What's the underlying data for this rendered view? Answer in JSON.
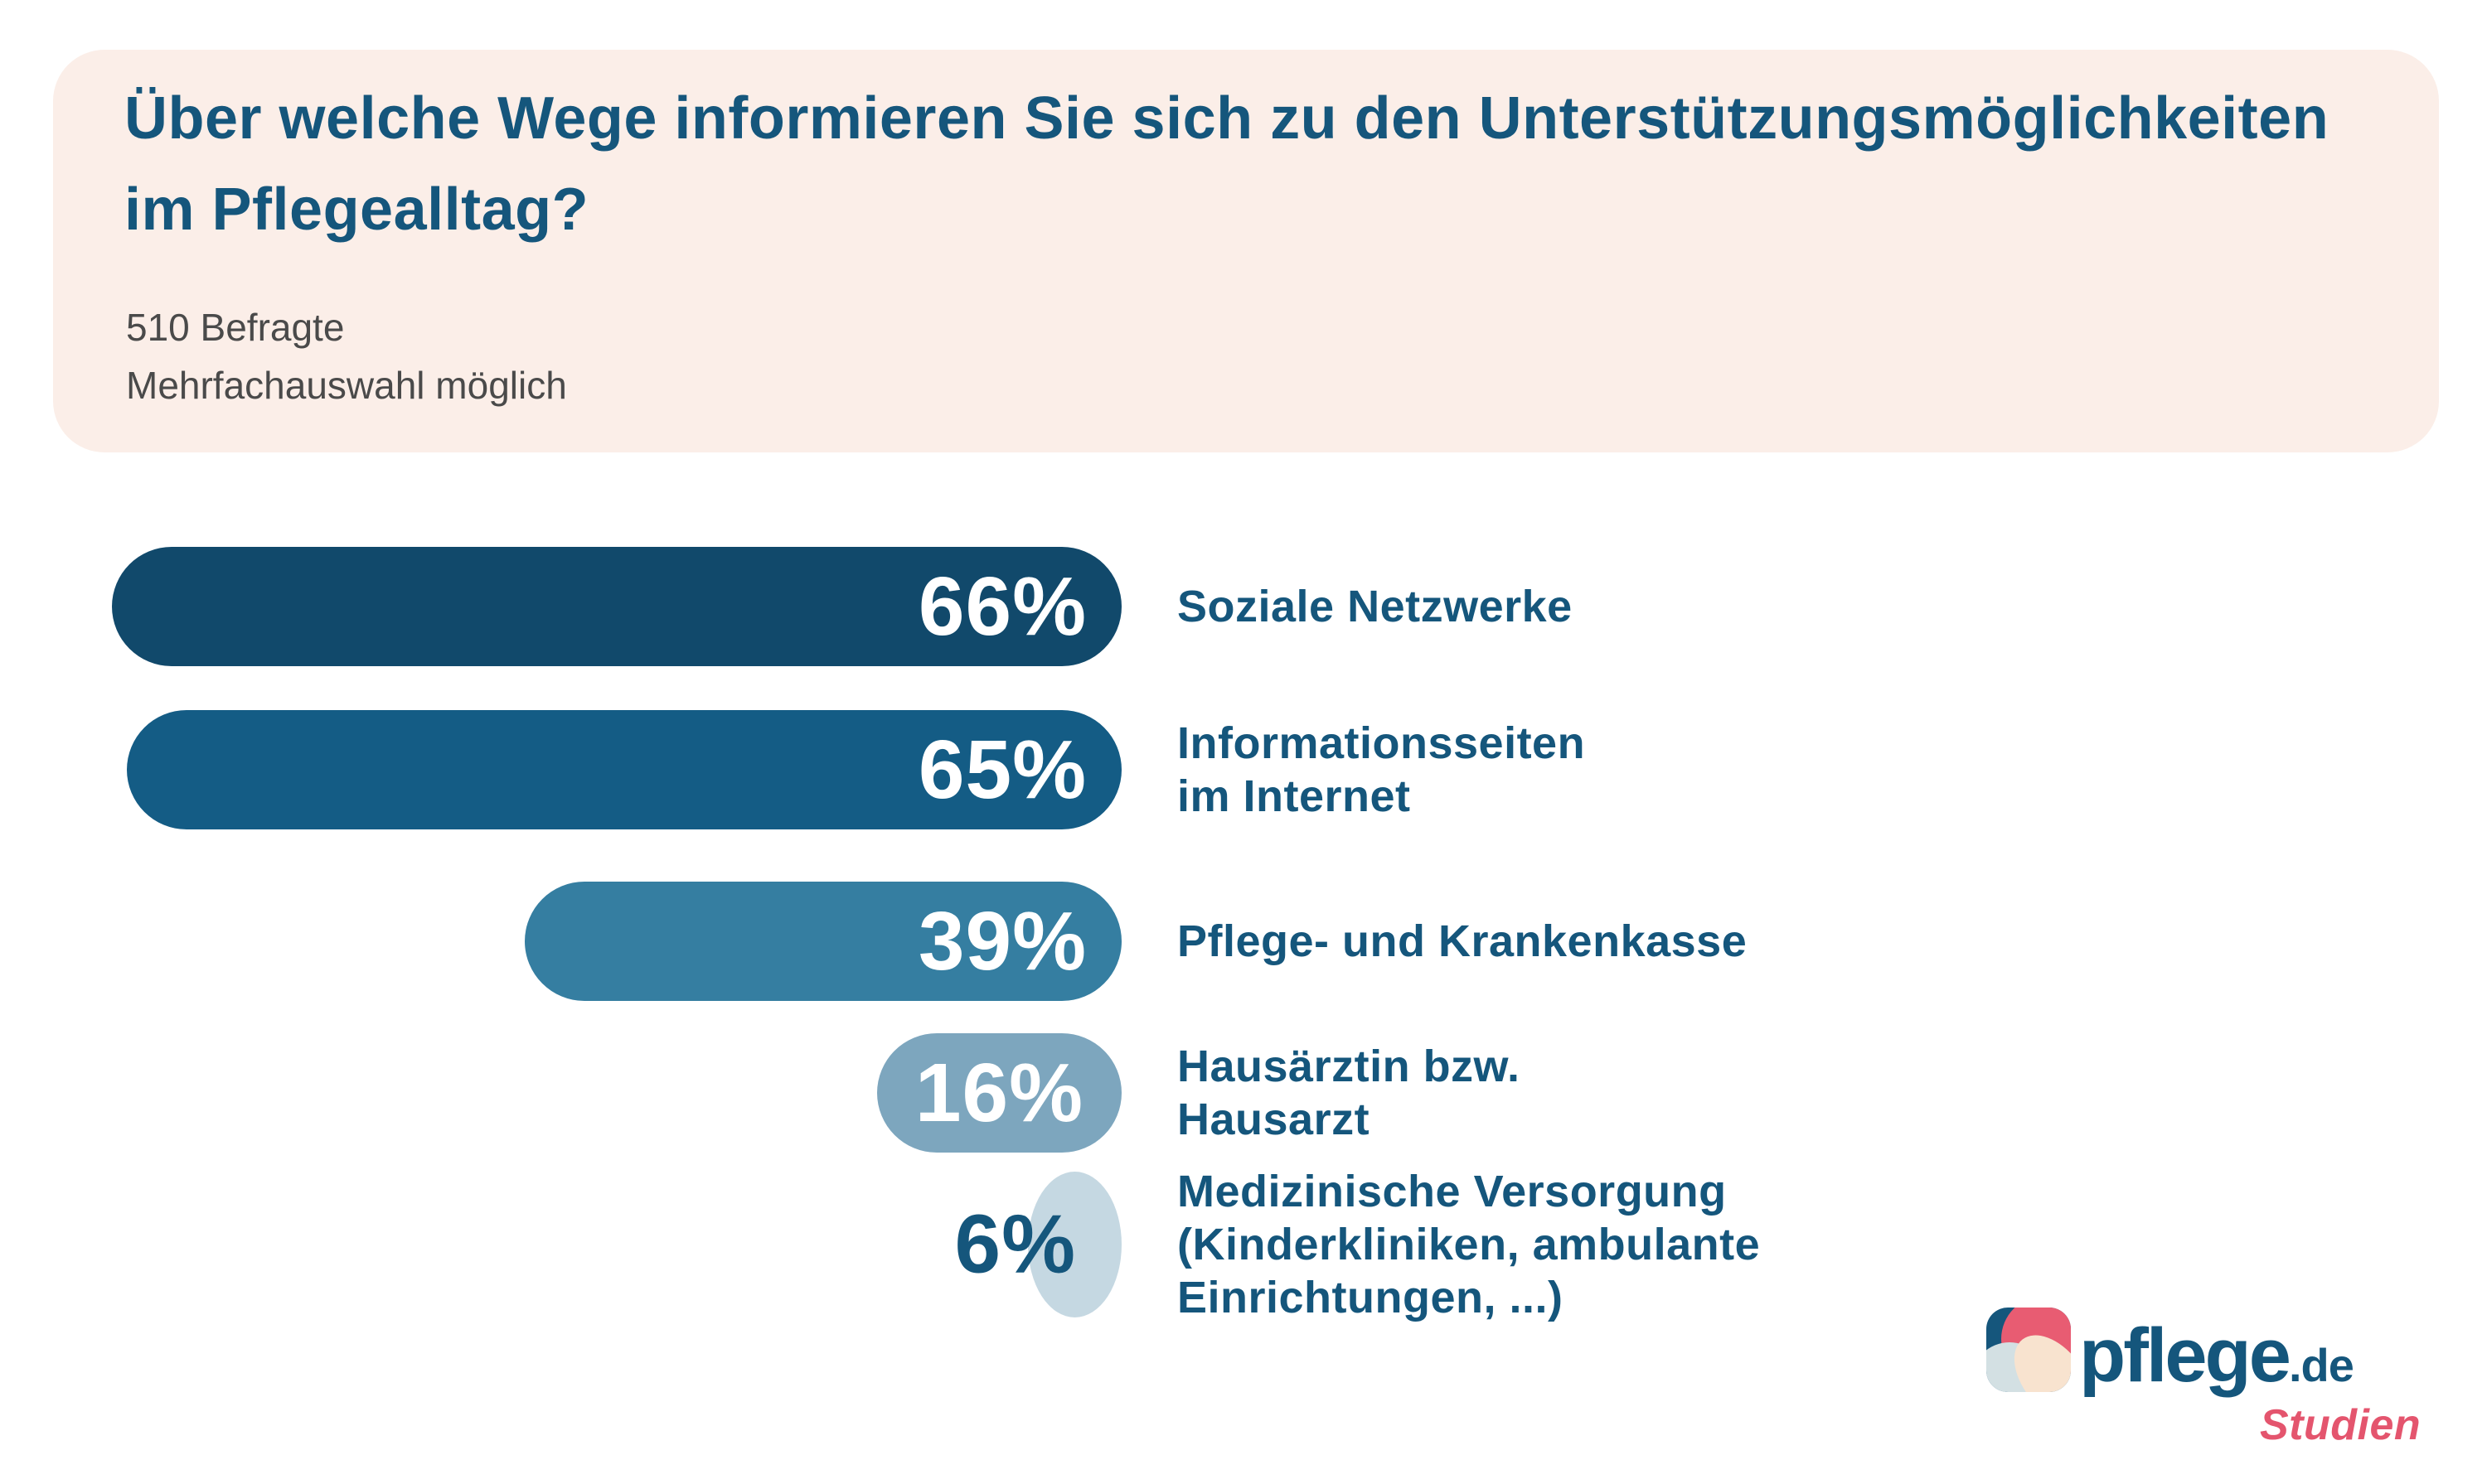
{
  "header": {
    "title_lines": [
      "Über welche Wege informieren Sie sich zu den Unterstützungsmöglichkeiten",
      "im Pflegealltag?"
    ],
    "subtitle_lines": [
      "510 Befragte",
      "Mehrfachauswahl möglich"
    ],
    "background_color": "#fbeee8",
    "title_color": "#15567c",
    "subtitle_color": "#4a4a4a"
  },
  "chart_data": {
    "type": "bar",
    "orientation": "horizontal",
    "bars_right_aligned": true,
    "title": "Über welche Wege informieren Sie sich zu den Unterstützungsmöglichkeiten im Pflegealltag?",
    "notes": [
      "510 Befragte",
      "Mehrfachauswahl möglich"
    ],
    "value_unit": "%",
    "xlim": [
      0,
      66
    ],
    "grid": false,
    "legend": false,
    "categories": [
      "Soziale Netzwerke",
      "Informationsseiten im Internet",
      "Pflege- und Krankenkasse",
      "Hausärztin bzw. Hausarzt",
      "Medizinische Versorgung (Kinderkliniken, ambulante Einrichtungen, ...)"
    ],
    "values": [
      66,
      65,
      39,
      16,
      6
    ],
    "category_label_color": "#15567c",
    "bars": [
      {
        "label_lines": [
          "Soziale Netzwerke"
        ],
        "value": 66,
        "display_value": "66%",
        "color": "#11496b",
        "value_label_position": "inside-right",
        "value_label_color": "#ffffff"
      },
      {
        "label_lines": [
          "Informationsseiten",
          "im Internet"
        ],
        "value": 65,
        "display_value": "65%",
        "color": "#145c85",
        "value_label_position": "inside-right",
        "value_label_color": "#ffffff"
      },
      {
        "label_lines": [
          "Pflege- und Krankenkasse"
        ],
        "value": 39,
        "display_value": "39%",
        "color": "#357ea1",
        "value_label_position": "inside-right",
        "value_label_color": "#ffffff"
      },
      {
        "label_lines": [
          "Hausärztin bzw.",
          "Hausarzt"
        ],
        "value": 16,
        "display_value": "16%",
        "color": "#7da6be",
        "value_label_position": "inside-center",
        "value_label_color": "#ffffff"
      },
      {
        "label_lines": [
          "Medizinische Versorgung",
          "(Kinderkliniken, ambulante",
          "Einrichtungen, ...)"
        ],
        "value": 6,
        "display_value": "6%",
        "color": "#c5d8e2",
        "value_label_position": "outside-left",
        "value_label_color": "#15567c"
      }
    ]
  },
  "logo": {
    "brand": "pflege",
    "suffix": ".de",
    "tagline": "Studien",
    "brand_color": "#15567c",
    "tagline_color": "#e4556e",
    "icon_colors": {
      "background": "#15567c",
      "petal_pink": "#e85c72",
      "petal_cream": "#f8e3cf",
      "circle_light": "#d3e0e3"
    }
  }
}
